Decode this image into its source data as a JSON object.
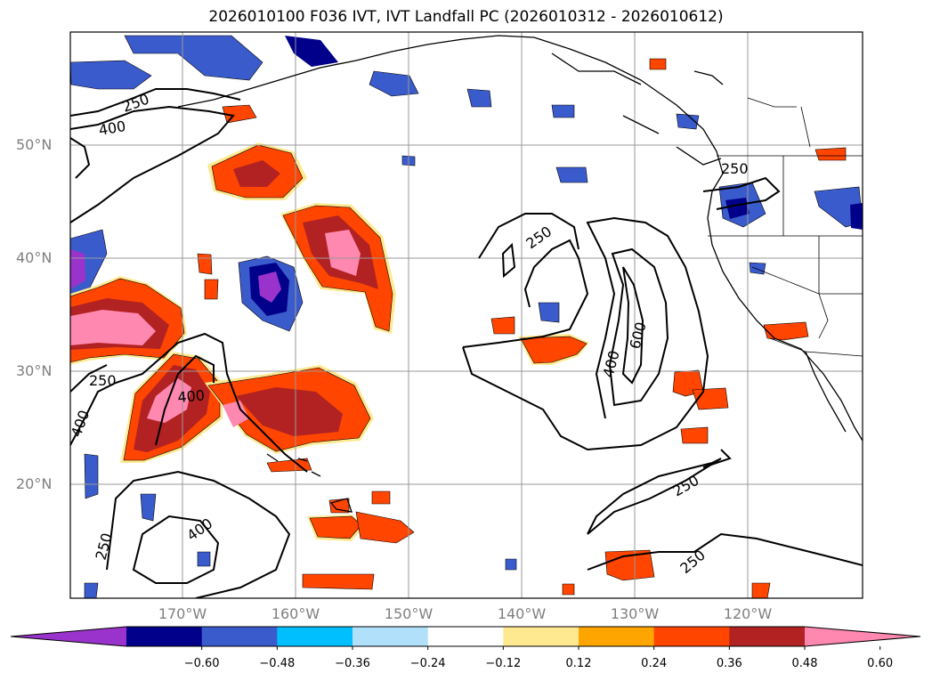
{
  "title": "2026010100 F036 IVT, IVT Landfall PC (2026010312 - 2026010612)",
  "lat_labels": [
    "50°N",
    "40°N",
    "30°N",
    "20°N"
  ],
  "lon_labels": [
    "170°W",
    "160°W",
    "150°W",
    "140°W",
    "130°W",
    "120°W"
  ],
  "contour_labels": [
    "250",
    "400",
    "250",
    "400",
    "400",
    "250",
    "250",
    "400",
    "600",
    "250",
    "250",
    "250",
    "400",
    "250"
  ],
  "colorbar": {
    "ticks": [
      "−0.60",
      "−0.48",
      "−0.36",
      "−0.24",
      "−0.12",
      "0.12",
      "0.24",
      "0.36",
      "0.48",
      "0.60"
    ],
    "colors": [
      "#9933cc",
      "#00008b",
      "#3a5bcc",
      "#00bfff",
      "#b0e0fa",
      "#ffffff",
      "#ffe990",
      "#ffa500",
      "#ff4500",
      "#b22222",
      "#ff88b0"
    ]
  }
}
